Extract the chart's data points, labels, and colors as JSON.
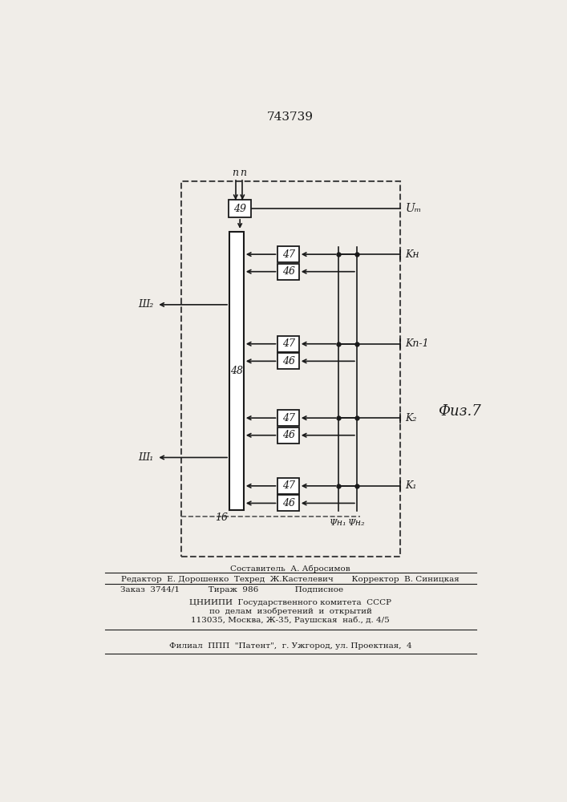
{
  "title": "743739",
  "fig_label": "Физ.7",
  "bg_color": "#f0ede8",
  "line_color": "#1a1a1a",
  "footer_lines": [
    "Составитель  А. Абросимов",
    "Редактор  Е. Дорошенко  Техред  Ж.Кастелевич       Корректор  В. Синицкая",
    "Заказ  3744/1           Тираж  986              Подписное",
    "ЦНИИПИ  Государственного комитета  СССР",
    "по  делам  изобретений  и  открытий",
    "113035, Москва, Ж-35, Раушская  наб., д. 4/5",
    "Филиал  ППП  \"Патент\",  г. Ужгород, ул. Проектная,  4"
  ],
  "groups": [
    {
      "k_label": "Kн"
    },
    {
      "k_label": "Kн-1"
    },
    {
      "k_label": "K₂"
    },
    {
      "k_label": "K₁"
    }
  ]
}
